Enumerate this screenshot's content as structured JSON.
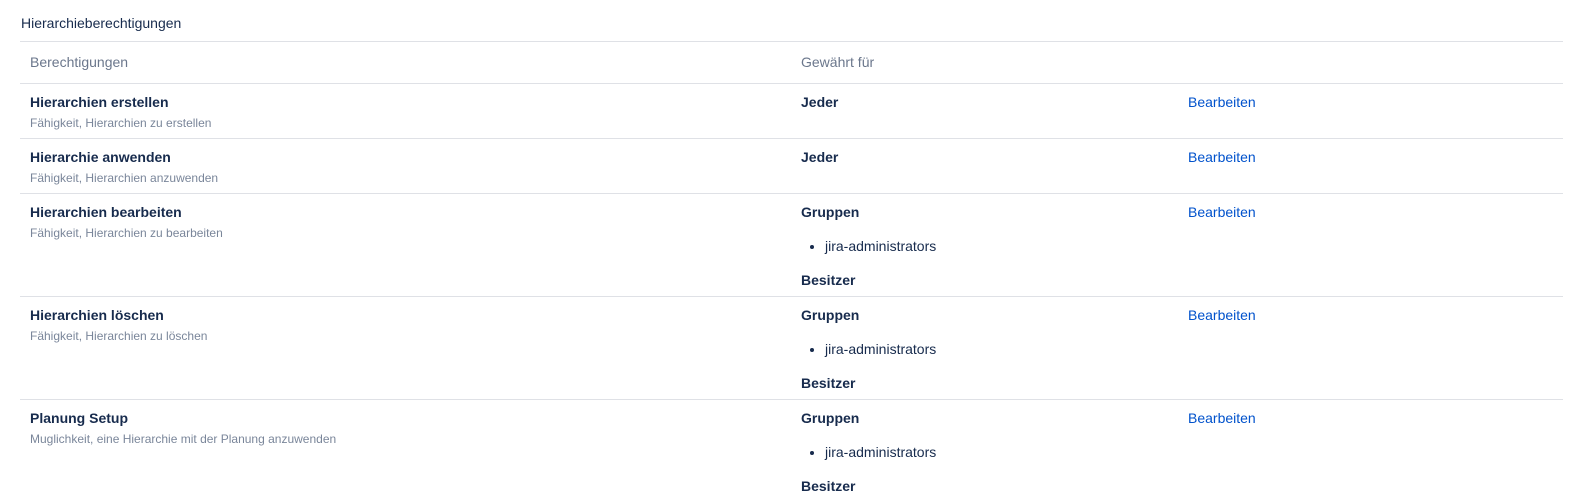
{
  "page": {
    "title": "Hierarchieberechtigungen"
  },
  "table": {
    "headers": {
      "permissions": "Berechtigungen",
      "granted_for": "Gewährt für",
      "actions": ""
    },
    "rows": [
      {
        "title": "Hierarchien erstellen",
        "description": "Fähigkeit, Hierarchien zu erstellen",
        "grantees": [
          {
            "label": "Jeder",
            "items": []
          }
        ],
        "action": "Bearbeiten"
      },
      {
        "title": "Hierarchie anwenden",
        "description": "Fähigkeit, Hierarchien anzuwenden",
        "grantees": [
          {
            "label": "Jeder",
            "items": []
          }
        ],
        "action": "Bearbeiten"
      },
      {
        "title": "Hierarchien bearbeiten",
        "description": "Fähigkeit, Hierarchien zu bearbeiten",
        "grantees": [
          {
            "label": "Gruppen",
            "items": [
              "jira-administrators"
            ]
          },
          {
            "label": "Besitzer",
            "items": []
          }
        ],
        "action": "Bearbeiten"
      },
      {
        "title": "Hierarchien löschen",
        "description": "Fähigkeit, Hierarchien zu löschen",
        "grantees": [
          {
            "label": "Gruppen",
            "items": [
              "jira-administrators"
            ]
          },
          {
            "label": "Besitzer",
            "items": []
          }
        ],
        "action": "Bearbeiten"
      },
      {
        "title": "Planung Setup",
        "description": "Muglichkeit, eine Hierarchie mit der Planung anzuwenden",
        "grantees": [
          {
            "label": "Gruppen",
            "items": [
              "jira-administrators"
            ]
          },
          {
            "label": "Besitzer",
            "items": []
          }
        ],
        "action": "Bearbeiten"
      }
    ]
  },
  "colors": {
    "heading": "#172B4D",
    "header_muted": "#6B778C",
    "description_muted": "#7A869A",
    "link": "#0052CC",
    "divider": "#DFE1E6"
  }
}
